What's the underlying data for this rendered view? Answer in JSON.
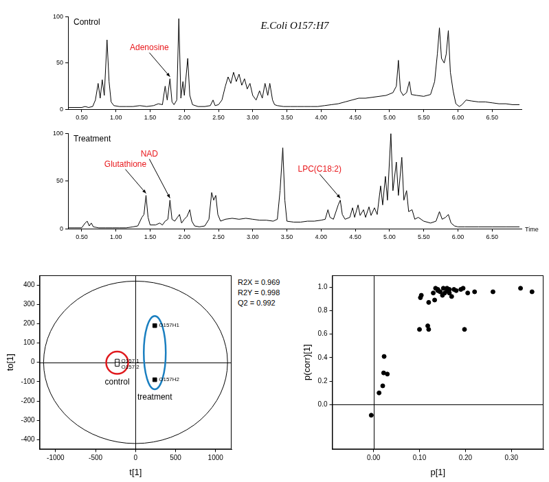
{
  "chart_data": [
    {
      "type": "line",
      "title": "Control",
      "subtitle": "E.Coli O157:H7",
      "color": "#000000",
      "x": [
        0.3,
        0.4,
        0.5,
        0.55,
        0.6,
        0.66,
        0.7,
        0.74,
        0.77,
        0.8,
        0.83,
        0.87,
        0.9,
        0.93,
        0.97,
        1.05,
        1.15,
        1.25,
        1.35,
        1.45,
        1.55,
        1.62,
        1.68,
        1.72,
        1.75,
        1.79,
        1.82,
        1.85,
        1.89,
        1.92,
        1.95,
        1.98,
        2.0,
        2.05,
        2.08,
        2.12,
        2.2,
        2.3,
        2.38,
        2.42,
        2.45,
        2.5,
        2.55,
        2.6,
        2.64,
        2.68,
        2.72,
        2.76,
        2.8,
        2.84,
        2.88,
        2.92,
        2.96,
        3.0,
        3.05,
        3.1,
        3.14,
        3.18,
        3.22,
        3.25,
        3.29,
        3.32,
        3.36,
        3.45,
        3.55,
        3.65,
        3.75,
        3.85,
        3.95,
        4.05,
        4.15,
        4.25,
        4.35,
        4.45,
        4.55,
        4.65,
        4.75,
        4.85,
        4.95,
        5.05,
        5.1,
        5.13,
        5.16,
        5.2,
        5.25,
        5.29,
        5.32,
        5.4,
        5.5,
        5.6,
        5.66,
        5.7,
        5.73,
        5.76,
        5.8,
        5.83,
        5.86,
        5.89,
        5.93,
        5.97,
        6.02,
        6.06,
        6.12,
        6.2,
        6.3,
        6.4,
        6.5,
        6.6,
        6.7,
        6.8,
        6.9
      ],
      "values": [
        2,
        2,
        2,
        3,
        2,
        3,
        10,
        28,
        12,
        32,
        15,
        75,
        30,
        8,
        4,
        3,
        3,
        3,
        4,
        3,
        4,
        6,
        5,
        25,
        10,
        33,
        8,
        5,
        10,
        98,
        12,
        30,
        15,
        55,
        15,
        5,
        3,
        3,
        4,
        10,
        4,
        5,
        10,
        25,
        35,
        28,
        40,
        30,
        38,
        26,
        33,
        22,
        28,
        15,
        10,
        20,
        12,
        28,
        15,
        28,
        10,
        5,
        4,
        3,
        3,
        3,
        3,
        3,
        3,
        4,
        5,
        6,
        8,
        10,
        12,
        12,
        13,
        14,
        15,
        18,
        25,
        53,
        20,
        15,
        18,
        30,
        16,
        15,
        14,
        16,
        30,
        60,
        88,
        55,
        50,
        60,
        85,
        40,
        20,
        6,
        3,
        5,
        10,
        9,
        8,
        8,
        7,
        6,
        6,
        5,
        5
      ],
      "xlim": [
        0.3,
        6.93
      ],
      "xticks": [
        {
          "value": 0.5,
          "label": "0.50"
        },
        {
          "value": 1.0,
          "label": "1.00"
        },
        {
          "value": 1.5,
          "label": "1.50"
        },
        {
          "value": 2.0,
          "label": "2.00"
        },
        {
          "value": 2.5,
          "label": "2.50"
        },
        {
          "value": 3.0,
          "label": "3.00"
        },
        {
          "value": 3.5,
          "label": "3.50"
        },
        {
          "value": 4.0,
          "label": "4.00"
        },
        {
          "value": 4.5,
          "label": "4.50"
        },
        {
          "value": 5.0,
          "label": "5.00"
        },
        {
          "value": 5.5,
          "label": "5.50"
        },
        {
          "value": 6.0,
          "label": "6.00"
        },
        {
          "value": 6.5,
          "label": "6.50"
        }
      ],
      "ylim": [
        0,
        100
      ],
      "yticks": [
        0,
        50,
        100
      ],
      "grid": false,
      "annotations": [
        {
          "text": "Adenosine",
          "x": 1.79,
          "y": 33,
          "color": "#e8171b"
        }
      ]
    },
    {
      "type": "line",
      "title": "Treatment",
      "x_label": "Time",
      "color": "#000000",
      "x": [
        0.3,
        0.4,
        0.5,
        0.55,
        0.58,
        0.61,
        0.64,
        0.67,
        0.75,
        0.85,
        0.95,
        1.05,
        1.15,
        1.25,
        1.32,
        1.38,
        1.41,
        1.44,
        1.47,
        1.5,
        1.58,
        1.64,
        1.68,
        1.72,
        1.76,
        1.79,
        1.82,
        1.86,
        1.9,
        1.93,
        1.96,
        2.0,
        2.04,
        2.08,
        2.11,
        2.15,
        2.22,
        2.3,
        2.36,
        2.4,
        2.43,
        2.46,
        2.49,
        2.53,
        2.6,
        2.7,
        2.8,
        2.9,
        3.0,
        3.1,
        3.2,
        3.3,
        3.36,
        3.4,
        3.44,
        3.47,
        3.5,
        3.6,
        3.7,
        3.8,
        3.9,
        4.0,
        4.06,
        4.1,
        4.13,
        4.18,
        4.25,
        4.28,
        4.31,
        4.35,
        4.42,
        4.46,
        4.49,
        4.54,
        4.57,
        4.62,
        4.65,
        4.7,
        4.73,
        4.78,
        4.82,
        4.87,
        4.9,
        4.94,
        4.97,
        5.02,
        5.05,
        5.1,
        5.13,
        5.18,
        5.21,
        5.25,
        5.28,
        5.33,
        5.37,
        5.42,
        5.5,
        5.6,
        5.68,
        5.73,
        5.77,
        5.82,
        5.86,
        5.9,
        5.95,
        6.0,
        6.1,
        6.3,
        6.5,
        6.7,
        6.9
      ],
      "values": [
        1,
        1,
        1,
        6,
        8,
        3,
        6,
        2,
        1,
        1,
        1,
        1,
        1,
        2,
        3,
        12,
        15,
        35,
        12,
        4,
        4,
        6,
        4,
        8,
        10,
        30,
        10,
        8,
        12,
        15,
        6,
        10,
        13,
        20,
        8,
        3,
        2,
        3,
        10,
        38,
        30,
        35,
        15,
        8,
        10,
        11,
        10,
        11,
        10,
        9,
        9,
        8,
        10,
        40,
        85,
        30,
        8,
        7,
        7,
        8,
        8,
        9,
        10,
        20,
        12,
        10,
        25,
        30,
        15,
        10,
        12,
        22,
        12,
        25,
        14,
        20,
        12,
        23,
        14,
        22,
        15,
        45,
        25,
        55,
        30,
        100,
        40,
        70,
        35,
        75,
        30,
        40,
        18,
        20,
        10,
        12,
        8,
        6,
        8,
        18,
        10,
        12,
        15,
        6,
        3,
        2,
        2,
        2,
        2,
        2,
        2
      ],
      "xlim": [
        0.3,
        6.93
      ],
      "xticks": [
        {
          "value": 0.5,
          "label": "0.50"
        },
        {
          "value": 1.0,
          "label": "1.00"
        },
        {
          "value": 1.5,
          "label": "1.50"
        },
        {
          "value": 2.0,
          "label": "2.00"
        },
        {
          "value": 2.5,
          "label": "2.50"
        },
        {
          "value": 3.0,
          "label": "3.00"
        },
        {
          "value": 3.5,
          "label": "3.50"
        },
        {
          "value": 4.0,
          "label": "4.00"
        },
        {
          "value": 4.5,
          "label": "4.50"
        },
        {
          "value": 5.0,
          "label": "5.00"
        },
        {
          "value": 5.5,
          "label": "5.50"
        },
        {
          "value": 6.0,
          "label": "6.00"
        },
        {
          "value": 6.5,
          "label": "6.50"
        }
      ],
      "ylim": [
        0,
        100
      ],
      "yticks": [
        0,
        50,
        100
      ],
      "grid": false,
      "annotations": [
        {
          "text": "Glutathione",
          "x": 1.44,
          "y": 35,
          "color": "#e8171b"
        },
        {
          "text": "NAD",
          "x": 1.79,
          "y": 30,
          "color": "#e8171b"
        },
        {
          "text": "LPC(C18:2)",
          "x": 4.28,
          "y": 30,
          "color": "#e8171b"
        }
      ]
    },
    {
      "type": "scatter",
      "x_label": "t[1]",
      "y_label": "to[1]",
      "series": [
        {
          "name": "control",
          "color": "#e0191d",
          "marker": "open_square",
          "x": [
            -230,
            -230
          ],
          "values": [
            6,
            -10
          ],
          "labels": [
            "O157 1",
            "O157 2"
          ]
        },
        {
          "name": "treatment",
          "color": "#1a7fc0",
          "marker": "square",
          "x": [
            240,
            240
          ],
          "values": [
            190,
            -90
          ],
          "labels": [
            "O157H1",
            "O157H2"
          ]
        }
      ],
      "ellipse": {
        "x_radius": 1150,
        "y_radius": 420
      },
      "stats": [
        "R2X = 0.969",
        "R2Y = 0.998",
        "Q2 = 0.992"
      ],
      "xlim": [
        -1200,
        1200
      ],
      "xticks": [
        -1000,
        -500,
        0,
        500,
        1000
      ],
      "ylim": [
        -450,
        450
      ],
      "yticks": [
        -400,
        -300,
        -200,
        -100,
        0,
        100,
        200,
        300,
        400
      ],
      "grid": false
    },
    {
      "type": "scatter",
      "x_label": "p[1]",
      "y_label": "p(corr)[1]",
      "color": "#000000",
      "marker": "circle",
      "x": [
        -0.005,
        0.012,
        0.02,
        0.022,
        0.023,
        0.03,
        0.1,
        0.102,
        0.104,
        0.118,
        0.12,
        0.12,
        0.13,
        0.133,
        0.135,
        0.14,
        0.14,
        0.145,
        0.15,
        0.152,
        0.155,
        0.16,
        0.16,
        0.165,
        0.165,
        0.17,
        0.175,
        0.18,
        0.19,
        0.195,
        0.198,
        0.205,
        0.22,
        0.26,
        0.32,
        0.345
      ],
      "values": [
        -0.09,
        0.1,
        0.16,
        0.27,
        0.41,
        0.26,
        0.64,
        0.91,
        0.93,
        0.67,
        0.64,
        0.87,
        0.95,
        0.89,
        0.99,
        0.98,
        0.97,
        0.96,
        0.93,
        0.99,
        0.95,
        0.97,
        0.99,
        0.95,
        0.98,
        0.92,
        0.98,
        0.97,
        0.98,
        0.99,
        0.64,
        0.95,
        0.96,
        0.96,
        0.99,
        0.96
      ],
      "xlim": [
        -0.09,
        0.37
      ],
      "xticks": [
        {
          "value": 0,
          "label": "0.00"
        },
        {
          "value": 0.1,
          "label": "0.10"
        },
        {
          "value": 0.2,
          "label": "0.20"
        },
        {
          "value": 0.3,
          "label": "0.30"
        }
      ],
      "ylim": [
        -0.38,
        1.1
      ],
      "yticks": [
        {
          "value": 0,
          "label": "0.0"
        },
        {
          "value": 0.2,
          "label": "0.2"
        },
        {
          "value": 0.4,
          "label": "0.4"
        },
        {
          "value": 0.6,
          "label": "0.6"
        },
        {
          "value": 0.8,
          "label": "0.8"
        },
        {
          "value": 1,
          "label": "1.0"
        }
      ],
      "grid": false
    }
  ]
}
